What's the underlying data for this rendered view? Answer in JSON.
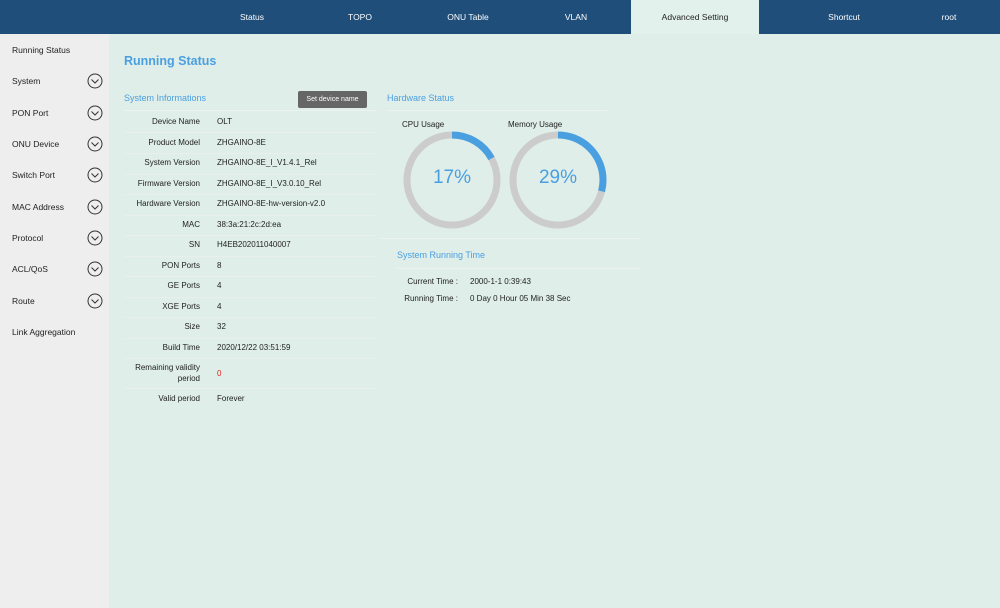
{
  "topnav": {
    "items": [
      {
        "label": "Status"
      },
      {
        "label": "TOPO"
      },
      {
        "label": "ONU Table"
      },
      {
        "label": "VLAN"
      },
      {
        "label": "Advanced Setting"
      },
      {
        "label": "Shortcut"
      },
      {
        "label": "root"
      }
    ],
    "active": "Advanced Setting"
  },
  "sidebar": {
    "items": [
      {
        "label": "Running Status",
        "expandable": false
      },
      {
        "label": "System",
        "expandable": true
      },
      {
        "label": "PON Port",
        "expandable": true
      },
      {
        "label": "ONU Device",
        "expandable": true
      },
      {
        "label": "Switch Port",
        "expandable": true
      },
      {
        "label": "MAC Address",
        "expandable": true
      },
      {
        "label": "Protocol",
        "expandable": true
      },
      {
        "label": "ACL/QoS",
        "expandable": true
      },
      {
        "label": "Route",
        "expandable": true
      },
      {
        "label": "Link Aggregation",
        "expandable": false
      }
    ]
  },
  "page": {
    "title": "Running Status"
  },
  "system_info": {
    "title": "System Informations",
    "button_label": "Set device name",
    "rows": [
      {
        "label": "Device Name",
        "value": "OLT"
      },
      {
        "label": "Product Model",
        "value": "ZHGAINO-8E"
      },
      {
        "label": "System Version",
        "value": "ZHGAINO-8E_I_V1.4.1_Rel"
      },
      {
        "label": "Firmware Version",
        "value": "ZHGAINO-8E_I_V3.0.10_Rel"
      },
      {
        "label": "Hardware Version",
        "value": "ZHGAINO-8E-hw-version-v2.0"
      },
      {
        "label": "MAC",
        "value": "38:3a:21:2c:2d:ea"
      },
      {
        "label": "SN",
        "value": "H4EB202011040007"
      },
      {
        "label": "PON Ports",
        "value": "8"
      },
      {
        "label": "GE Ports",
        "value": "4"
      },
      {
        "label": "XGE Ports",
        "value": "4"
      },
      {
        "label": "Size",
        "value": "32"
      },
      {
        "label": "Build Time",
        "value": "2020/12/22 03:51:59"
      },
      {
        "label_line1": "Remaining validity",
        "label_line2": "period",
        "value": "0"
      },
      {
        "label": "Valid period",
        "value": "Forever"
      }
    ]
  },
  "hardware": {
    "title": "Hardware Status",
    "cpu": {
      "label": "CPU Usage",
      "percent": 17,
      "text": "17%"
    },
    "memory": {
      "label": "Memory Usage",
      "percent": 29,
      "text": "29%"
    }
  },
  "running_time": {
    "title": "System Running Time",
    "current_label": "Current Time :",
    "current_value": "2000-1-1 0:39:43",
    "running_label": "Running Time :",
    "running_value": "0 Day 0 Hour 05 Min 38 Sec"
  },
  "colors": {
    "nav": "#1f4e7a",
    "accent": "#4a9fe0",
    "content_bg": "#dfeee9",
    "sidebar_bg": "#eeeeee",
    "warning": "#e02020"
  }
}
